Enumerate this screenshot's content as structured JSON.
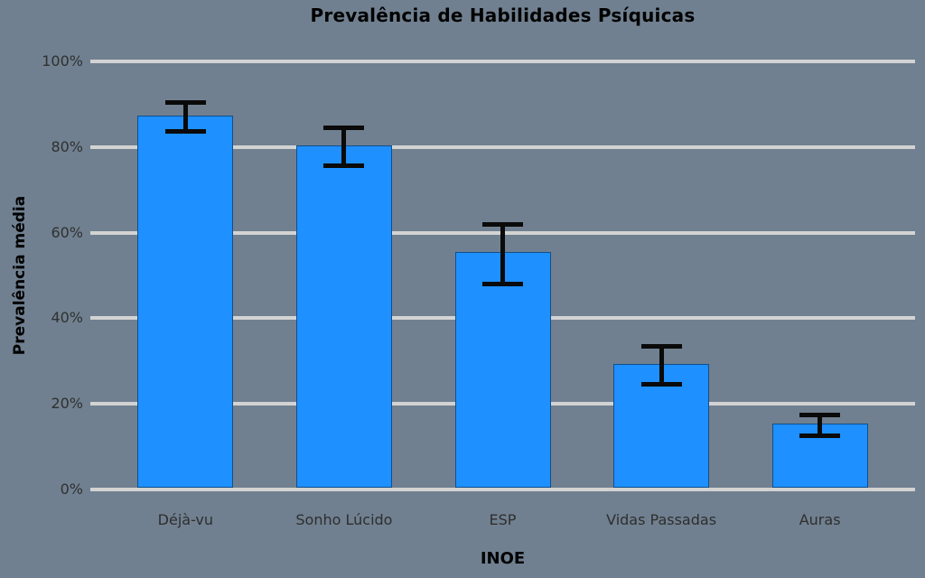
{
  "chart_data": {
    "type": "bar",
    "title": "Prevalência de Habilidades Psíquicas",
    "xlabel": "INOE",
    "ylabel": "Prevalência média",
    "categories": [
      "Déjà-vu",
      "Sonho Lúcido",
      "ESP",
      "Vidas Passadas",
      "Auras"
    ],
    "values": [
      87,
      80,
      55,
      29,
      15
    ],
    "errors": [
      3.3,
      4.4,
      7,
      4.5,
      2.5
    ],
    "ylim": [
      0,
      100
    ],
    "ytick_values": [
      0,
      20,
      40,
      60,
      80,
      100
    ],
    "ytick_labels": [
      "0%",
      "20%",
      "40%",
      "60%",
      "80%",
      "100%"
    ],
    "grid": true,
    "legend": "none",
    "colors": {
      "background": "#708090",
      "bar": "#1E90FF",
      "gridline": "#d3d3d3",
      "error_bar": "#0a0a0a",
      "title_text": "#000000",
      "tick_text": "#303030"
    }
  }
}
